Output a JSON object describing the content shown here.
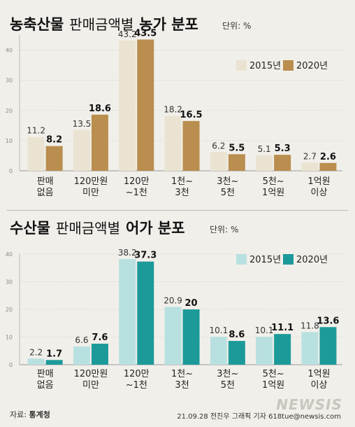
{
  "chart_data": [
    {
      "type": "bar",
      "title": "농축산물",
      "subtitle": "판매금액별",
      "title_bold2": "농가 분포",
      "unit": "단위: %",
      "categories": [
        [
          "판매",
          "없음"
        ],
        [
          "120만원",
          "미만"
        ],
        [
          "120만",
          "~1천"
        ],
        [
          "1천~",
          "3천"
        ],
        [
          "3천~",
          "5천"
        ],
        [
          "5천~",
          "1억원"
        ],
        [
          "1억원",
          "이상"
        ]
      ],
      "series": [
        {
          "name": "2015년",
          "values": [
            11.2,
            13.5,
            43.2,
            18.2,
            6.2,
            5.1,
            2.7
          ],
          "color": "#ebe3d2"
        },
        {
          "name": "2020년",
          "values": [
            8.2,
            18.6,
            43.5,
            16.5,
            5.5,
            5.3,
            2.6
          ],
          "color": "#b98e4e"
        }
      ],
      "ylim": [
        0,
        45
      ],
      "yticks": [
        0,
        10,
        20,
        30,
        40
      ],
      "legend": "top-right"
    },
    {
      "type": "bar",
      "title": "수산물",
      "subtitle": "판매금액별",
      "title_bold2": "어가 분포",
      "unit": "단위: %",
      "categories": [
        [
          "판매",
          "없음"
        ],
        [
          "120만원",
          "미만"
        ],
        [
          "120만",
          "~1천"
        ],
        [
          "1천~",
          "3천"
        ],
        [
          "3천~",
          "5천"
        ],
        [
          "5천~",
          "1억원"
        ],
        [
          "1억원",
          "이상"
        ]
      ],
      "series": [
        {
          "name": "2015년",
          "values": [
            2.2,
            6.6,
            38.2,
            20.9,
            10.1,
            10.1,
            11.8
          ],
          "color": "#b9e0e0"
        },
        {
          "name": "2020년",
          "values": [
            1.7,
            7.6,
            37.3,
            20.0,
            8.6,
            11.1,
            13.6
          ],
          "color": "#1c9a9a"
        }
      ],
      "ylim": [
        0,
        40
      ],
      "yticks": [
        0,
        10,
        20,
        30,
        40
      ],
      "legend": "top-right"
    }
  ],
  "footer": {
    "source_label": "자료:",
    "source": "통계청",
    "credit": "21.09.28  전진우  그래픽  기자  618tue@newsis.com"
  },
  "logo": "NEWSIS"
}
